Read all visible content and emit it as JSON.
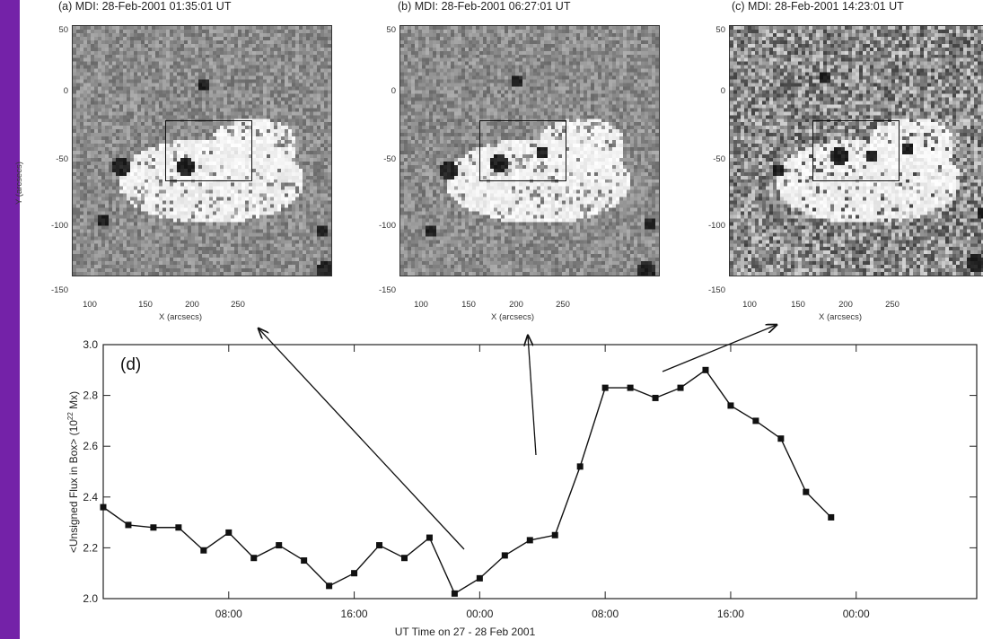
{
  "panels": [
    {
      "title": "(a) MDI: 28-Feb-2001 01:35:01 UT",
      "xlabel": "X (arcsecs)",
      "ylabel": "Y (arcsecs)",
      "xticks": [
        "100",
        "150",
        "200",
        "250"
      ],
      "yticks": [
        "50",
        "0",
        "-50",
        "-100",
        "-150"
      ]
    },
    {
      "title": "(b) MDI: 28-Feb-2001 06:27:01 UT",
      "xlabel": "X (arcsecs)",
      "xticks": [
        "100",
        "150",
        "200",
        "250"
      ],
      "yticks": [
        "50",
        "0",
        "-50",
        "-100",
        "-150"
      ]
    },
    {
      "title": "(c) MDI: 28-Feb-2001 14:23:01 UT",
      "xlabel": "X (arcsecs)",
      "xticks": [
        "100",
        "150",
        "200",
        "250"
      ],
      "yticks": [
        "50",
        "0",
        "-50",
        "-100",
        "-150"
      ]
    }
  ],
  "chart_data": {
    "type": "line",
    "label": "(d)",
    "xlabel": "UT Time on 27 - 28 Feb 2001",
    "ylabel": "<Unsigned Flux in Box> (10",
    "ylabel_sup": "22",
    "ylabel_end": " Mx)",
    "xlim": [
      0,
      48
    ],
    "ylim": [
      2.0,
      3.0
    ],
    "xtick_values": [
      8,
      16,
      24,
      32,
      40,
      48
    ],
    "xtick_labels": [
      "08:00",
      "16:00",
      "00:00",
      "08:00",
      "16:00",
      "00:00"
    ],
    "ytick_values": [
      2.0,
      2.2,
      2.4,
      2.6,
      2.8,
      3.0
    ],
    "ytick_labels": [
      "2.0",
      "2.2",
      "2.4",
      "2.6",
      "2.8",
      "3.0"
    ],
    "series": [
      {
        "x": [
          0,
          1.6,
          3.2,
          4.8,
          6.4,
          8,
          9.6,
          11.2,
          12.8,
          14.4,
          16,
          17.6,
          19.2,
          20.8,
          22.4,
          24,
          25.6,
          27.2,
          28.8,
          30.4,
          32,
          33.6,
          35.2,
          36.8,
          38.4,
          40,
          41.6,
          43.2,
          44.8,
          46.4
        ],
        "y": [
          2.36,
          2.29,
          2.28,
          2.28,
          2.19,
          2.26,
          2.16,
          2.21,
          2.15,
          2.05,
          2.1,
          2.21,
          2.16,
          2.24,
          2.02,
          2.08,
          2.17,
          2.23,
          2.25,
          2.52,
          2.83,
          2.83,
          2.79,
          2.83,
          2.9,
          2.76,
          2.7,
          2.63,
          2.42,
          2.32
        ]
      }
    ]
  }
}
